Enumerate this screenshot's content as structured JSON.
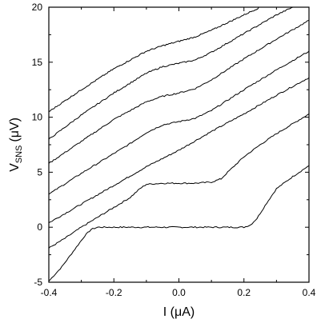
{
  "chart_data": {
    "type": "line",
    "xlabel": "I (μA)",
    "ylabel_main": "V",
    "ylabel_sub": "SNS",
    "ylabel_unit": "(μV)",
    "xlim": [
      -0.4,
      0.4
    ],
    "ylim": [
      -5,
      20
    ],
    "xticks": [
      -0.4,
      -0.2,
      0.0,
      0.2,
      0.4
    ],
    "xtick_labels": [
      "-0.4",
      "-0.2",
      "0.0",
      "0.2",
      "0.4"
    ],
    "yticks": [
      -5,
      0,
      5,
      10,
      15,
      20
    ],
    "ytick_labels": [
      "-5",
      "0",
      "5",
      "10",
      "15",
      "20"
    ],
    "grid": false,
    "series": [
      {
        "x": [
          -0.4,
          -0.36,
          -0.32,
          -0.29,
          -0.27,
          -0.25,
          -0.2,
          -0.1,
          0.0,
          0.1,
          0.2,
          0.22,
          0.24,
          0.27,
          0.3,
          0.35,
          0.4
        ],
        "y": [
          -4.9,
          -3.6,
          -2.0,
          -0.8,
          -0.2,
          0.0,
          0.0,
          0.0,
          0.0,
          0.0,
          0.0,
          0.2,
          0.8,
          2.2,
          3.5,
          4.6,
          5.6
        ]
      },
      {
        "x": [
          -0.4,
          -0.35,
          -0.3,
          -0.25,
          -0.2,
          -0.15,
          -0.12,
          -0.1,
          -0.05,
          0.0,
          0.05,
          0.1,
          0.13,
          0.15,
          0.2,
          0.25,
          0.3,
          0.35,
          0.4
        ],
        "y": [
          -1.9,
          -1.0,
          0.0,
          0.9,
          1.8,
          2.7,
          3.5,
          3.9,
          4.0,
          4.0,
          4.0,
          4.1,
          4.4,
          5.0,
          6.4,
          7.5,
          8.5,
          9.4,
          10.3
        ]
      },
      {
        "x": [
          -0.4,
          -0.3,
          -0.2,
          -0.1,
          0.0,
          0.1,
          0.2,
          0.3,
          0.4
        ],
        "y": [
          0.4,
          2.1,
          3.8,
          5.5,
          7.0,
          8.7,
          10.3,
          12.0,
          13.6
        ]
      },
      {
        "x": [
          -0.4,
          -0.3,
          -0.2,
          -0.15,
          -0.1,
          -0.05,
          0.0,
          0.05,
          0.1,
          0.2,
          0.3,
          0.4
        ],
        "y": [
          3.0,
          4.9,
          6.7,
          7.6,
          8.6,
          9.3,
          9.6,
          9.9,
          10.6,
          12.5,
          14.3,
          16.0
        ]
      },
      {
        "x": [
          -0.4,
          -0.3,
          -0.2,
          -0.1,
          -0.05,
          0.0,
          0.05,
          0.1,
          0.2,
          0.3,
          0.4
        ],
        "y": [
          5.8,
          7.8,
          9.8,
          11.4,
          11.9,
          12.2,
          12.6,
          13.4,
          15.3,
          17.1,
          18.8
        ]
      },
      {
        "x": [
          -0.4,
          -0.3,
          -0.2,
          -0.1,
          -0.05,
          0.0,
          0.05,
          0.1,
          0.2,
          0.3,
          0.35
        ],
        "y": [
          8.0,
          10.2,
          12.2,
          14.0,
          14.6,
          14.9,
          15.2,
          15.9,
          17.6,
          19.3,
          20.0
        ]
      },
      {
        "x": [
          -0.4,
          -0.3,
          -0.2,
          -0.1,
          -0.05,
          0.0,
          0.05,
          0.1,
          0.2,
          0.25
        ],
        "y": [
          10.5,
          12.5,
          14.4,
          16.0,
          16.5,
          16.9,
          17.3,
          17.9,
          19.3,
          20.0
        ]
      }
    ]
  }
}
